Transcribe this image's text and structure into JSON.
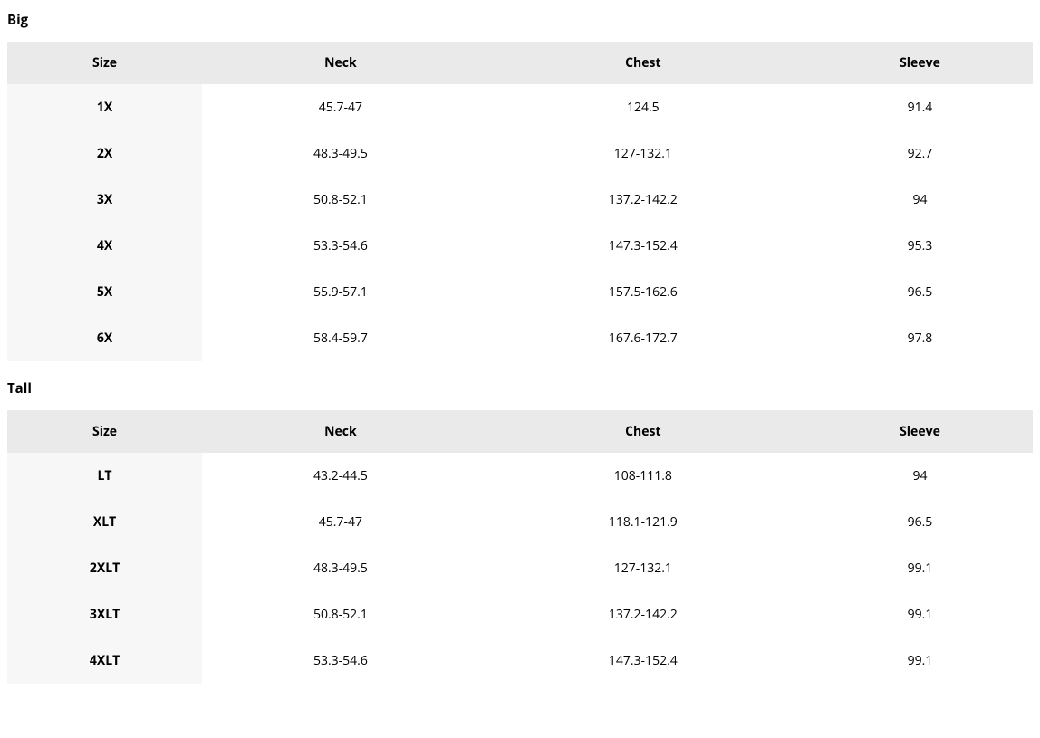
{
  "sections": [
    {
      "heading": "Big",
      "columns": [
        "Size",
        "Neck",
        "Chest",
        "Sleeve"
      ],
      "rows": [
        [
          "1X",
          "45.7-47",
          "124.5",
          "91.4"
        ],
        [
          "2X",
          "48.3-49.5",
          "127-132.1",
          "92.7"
        ],
        [
          "3X",
          "50.8-52.1",
          "137.2-142.2",
          "94"
        ],
        [
          "4X",
          "53.3-54.6",
          "147.3-152.4",
          "95.3"
        ],
        [
          "5X",
          "55.9-57.1",
          "157.5-162.6",
          "96.5"
        ],
        [
          "6X",
          "58.4-59.7",
          "167.6-172.7",
          "97.8"
        ]
      ]
    },
    {
      "heading": "Tall",
      "columns": [
        "Size",
        "Neck",
        "Chest",
        "Sleeve"
      ],
      "rows": [
        [
          "LT",
          "43.2-44.5",
          "108-111.8",
          "94"
        ],
        [
          "XLT",
          "45.7-47",
          "118.1-121.9",
          "96.5"
        ],
        [
          "2XLT",
          "48.3-49.5",
          "127-132.1",
          "99.1"
        ],
        [
          "3XLT",
          "50.8-52.1",
          "137.2-142.2",
          "99.1"
        ],
        [
          "4XLT",
          "53.3-54.6",
          "147.3-152.4",
          "99.1"
        ]
      ]
    }
  ],
  "colors": {
    "header_bg": "#eaeaea",
    "size_col_bg": "#f7f7f7",
    "text": "#000000",
    "background": "#ffffff"
  },
  "column_widths_pct": {
    "size": 19,
    "neck": 27,
    "chest": 32,
    "sleeve": 22
  },
  "typography": {
    "heading_fontsize_pt": 11,
    "header_fontsize_pt": 10.5,
    "cell_fontsize_pt": 10.5,
    "heading_weight": 700,
    "header_weight": 700,
    "size_cell_weight": 700,
    "data_cell_weight": 400
  }
}
